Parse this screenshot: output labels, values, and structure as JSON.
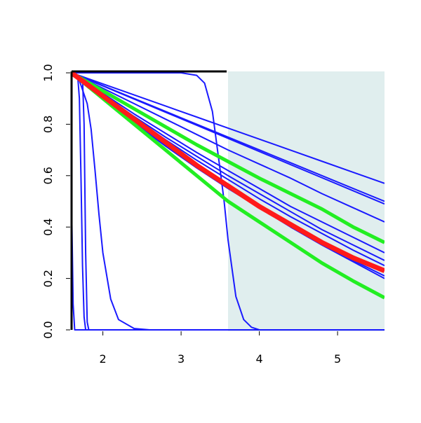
{
  "chart_data": {
    "type": "line",
    "xlim": [
      1.6,
      5.6
    ],
    "ylim": [
      0,
      1
    ],
    "xticks": [
      2,
      3,
      4,
      5
    ],
    "yticks": [
      {
        "value": 0,
        "label": "0.0"
      },
      {
        "value": 0.2,
        "label": "0.2"
      },
      {
        "value": 0.4,
        "label": "0.4"
      },
      {
        "value": 0.6,
        "label": "0.6"
      },
      {
        "value": 0.8,
        "label": "0.8"
      },
      {
        "value": 1,
        "label": "1.0"
      }
    ],
    "shade": {
      "xlim": [
        3.6,
        5.6
      ],
      "color": "#e0eeee"
    },
    "series": [
      {
        "color": "#1a1aff",
        "width": 2,
        "x": [
          1.6,
          2.0,
          2.4,
          2.8,
          3.2,
          3.6,
          4.0,
          4.4,
          4.8,
          5.2,
          5.6
        ],
        "values": [
          1,
          0.957,
          0.914,
          0.871,
          0.828,
          0.785,
          0.742,
          0.699,
          0.656,
          0.613,
          0.57
        ]
      },
      {
        "color": "#1a1aff",
        "width": 2,
        "x": [
          1.6,
          2.0,
          2.4,
          2.8,
          3.2,
          3.6,
          4.0,
          4.4,
          4.8,
          5.2,
          5.6
        ],
        "values": [
          1,
          0.95,
          0.9,
          0.85,
          0.8,
          0.75,
          0.7,
          0.65,
          0.6,
          0.55,
          0.5
        ]
      },
      {
        "color": "#1a1aff",
        "width": 2,
        "x": [
          1.6,
          2.0,
          2.4,
          2.8,
          3.2,
          3.6,
          4.0,
          4.4,
          4.8,
          5.2,
          5.6
        ],
        "values": [
          1,
          0.949,
          0.898,
          0.847,
          0.796,
          0.745,
          0.694,
          0.643,
          0.592,
          0.541,
          0.49
        ]
      },
      {
        "color": "#1a1aff",
        "width": 2,
        "x": [
          1.6,
          2.0,
          2.4,
          2.8,
          3.2,
          3.6,
          4.0,
          4.4,
          4.8,
          5.2,
          5.6
        ],
        "values": [
          1,
          0.94,
          0.88,
          0.82,
          0.76,
          0.7,
          0.645,
          0.59,
          0.53,
          0.475,
          0.42
        ]
      },
      {
        "color": "#1a1aff",
        "width": 2,
        "x": [
          1.6,
          2.0,
          2.4,
          2.8,
          3.2,
          3.6,
          4.0,
          4.4,
          4.8,
          5.2,
          5.6
        ],
        "values": [
          1,
          0.92,
          0.84,
          0.765,
          0.69,
          0.62,
          0.55,
          0.48,
          0.42,
          0.36,
          0.3
        ]
      },
      {
        "color": "#1a1aff",
        "width": 2,
        "x": [
          1.6,
          2.0,
          2.4,
          2.8,
          3.2,
          3.6,
          4.0,
          4.4,
          4.8,
          5.2,
          5.6
        ],
        "values": [
          1,
          0.915,
          0.83,
          0.75,
          0.675,
          0.6,
          0.53,
          0.46,
          0.39,
          0.33,
          0.27
        ]
      },
      {
        "color": "#1a1aff",
        "width": 2,
        "x": [
          1.6,
          2.0,
          2.4,
          2.8,
          3.2,
          3.6,
          4.0,
          4.4,
          4.8,
          5.2,
          5.6
        ],
        "values": [
          1,
          0.91,
          0.825,
          0.74,
          0.66,
          0.585,
          0.51,
          0.44,
          0.375,
          0.31,
          0.25
        ]
      },
      {
        "color": "#1a1aff",
        "width": 2,
        "x": [
          1.6,
          2.0,
          2.4,
          2.8,
          3.2,
          3.6,
          4.0,
          4.4,
          4.8,
          5.2,
          5.6
        ],
        "values": [
          1,
          0.905,
          0.81,
          0.72,
          0.635,
          0.555,
          0.48,
          0.41,
          0.34,
          0.27,
          0.21
        ]
      },
      {
        "color": "#1a1aff",
        "width": 2,
        "x": [
          1.6,
          2.0,
          2.4,
          2.8,
          3.2,
          3.6,
          4.0,
          4.4,
          4.8,
          5.2,
          5.6
        ],
        "values": [
          1,
          0.9,
          0.805,
          0.715,
          0.63,
          0.55,
          0.475,
          0.4,
          0.33,
          0.265,
          0.2
        ]
      },
      {
        "color": "#1a1aff",
        "width": 2,
        "x": [
          1.6,
          3.0,
          3.2,
          3.3,
          3.4,
          3.5,
          3.55,
          3.6,
          3.7,
          3.8,
          3.9,
          4.0,
          5.6
        ],
        "values": [
          1,
          1,
          0.99,
          0.96,
          0.85,
          0.62,
          0.5,
          0.35,
          0.13,
          0.04,
          0.01,
          0,
          0
        ]
      },
      {
        "color": "#1a1aff",
        "width": 2,
        "x": [
          1.6,
          1.7,
          1.8,
          1.85,
          1.9,
          1.95,
          2.0,
          2.1,
          2.2,
          2.4,
          2.6,
          5.6
        ],
        "values": [
          1,
          0.97,
          0.88,
          0.78,
          0.62,
          0.45,
          0.3,
          0.12,
          0.04,
          0.005,
          0,
          0
        ]
      },
      {
        "color": "#1a1aff",
        "width": 2,
        "x": [
          1.6,
          1.68,
          1.7,
          1.72,
          1.74,
          1.76,
          1.78,
          5.6
        ],
        "values": [
          1,
          0.98,
          0.9,
          0.6,
          0.25,
          0.05,
          0,
          0
        ]
      },
      {
        "color": "#1a1aff",
        "width": 2,
        "x": [
          1.6,
          1.74,
          1.76,
          1.78,
          1.8,
          1.82,
          5.6
        ],
        "values": [
          1,
          0.98,
          0.8,
          0.3,
          0.03,
          0,
          0
        ]
      },
      {
        "color": "#1a1aff",
        "width": 2,
        "x": [
          1.6,
          1.62,
          1.64,
          5.6
        ],
        "values": [
          0.5,
          0.1,
          0,
          0
        ]
      },
      {
        "color": "#22ee22",
        "width": 5,
        "x": [
          1.6,
          2.0,
          2.4,
          2.8,
          3.2,
          3.6,
          4.0,
          4.4,
          4.8,
          5.2,
          5.6
        ],
        "values": [
          1,
          0.93,
          0.86,
          0.79,
          0.72,
          0.655,
          0.59,
          0.53,
          0.47,
          0.4,
          0.34
        ]
      },
      {
        "color": "#22ee22",
        "width": 5,
        "x": [
          1.6,
          2.0,
          2.4,
          2.8,
          3.2,
          3.6,
          4.0,
          4.4,
          4.8,
          5.2,
          5.6
        ],
        "values": [
          1,
          0.9,
          0.8,
          0.7,
          0.6,
          0.5,
          0.42,
          0.34,
          0.26,
          0.19,
          0.125
        ]
      },
      {
        "color": "#ff1a1a",
        "width": 7,
        "x": [
          1.6,
          2.0,
          2.4,
          2.8,
          3.2,
          3.6,
          4.0,
          4.4,
          4.8,
          5.2,
          5.6
        ],
        "values": [
          1,
          0.91,
          0.82,
          0.73,
          0.64,
          0.56,
          0.48,
          0.41,
          0.34,
          0.28,
          0.23
        ]
      }
    ]
  }
}
